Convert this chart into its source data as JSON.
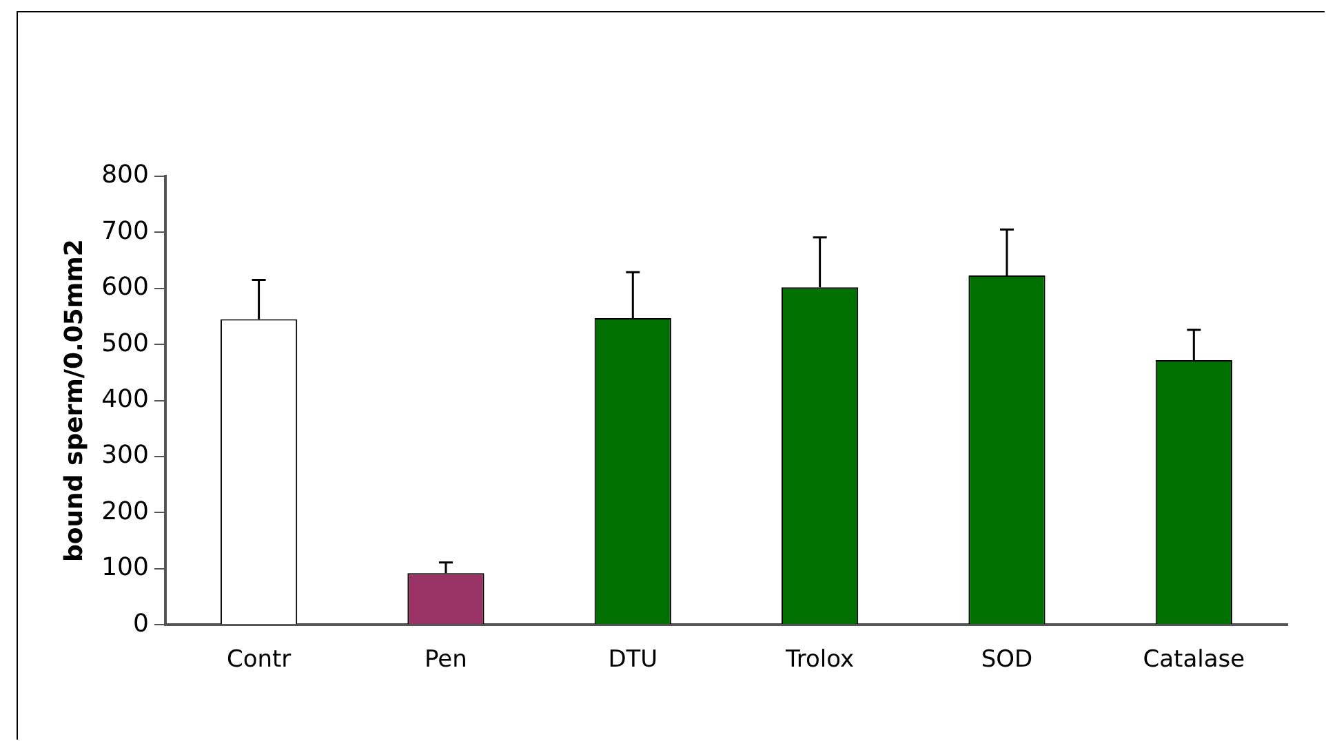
{
  "chart_data": {
    "type": "bar",
    "ylabel": "bound sperm/0.05mm2",
    "categories": [
      "Contr",
      "Pen",
      "DTU",
      "Trolox",
      "SOD",
      "Catalase"
    ],
    "values": [
      545,
      92,
      547,
      602,
      623,
      472
    ],
    "colors": [
      "#ffffff",
      "#993366",
      "#007000",
      "#007000",
      "#007000",
      "#007000"
    ],
    "errors": [
      [
        545,
        615
      ],
      [
        92,
        111
      ],
      [
        547,
        629
      ],
      [
        602,
        691
      ],
      [
        623,
        705
      ],
      [
        472,
        526
      ]
    ],
    "ylim": [
      0,
      800
    ],
    "yticks": [
      0,
      100,
      200,
      300,
      400,
      500,
      600,
      700,
      800
    ],
    "grid": false,
    "legend": false
  }
}
